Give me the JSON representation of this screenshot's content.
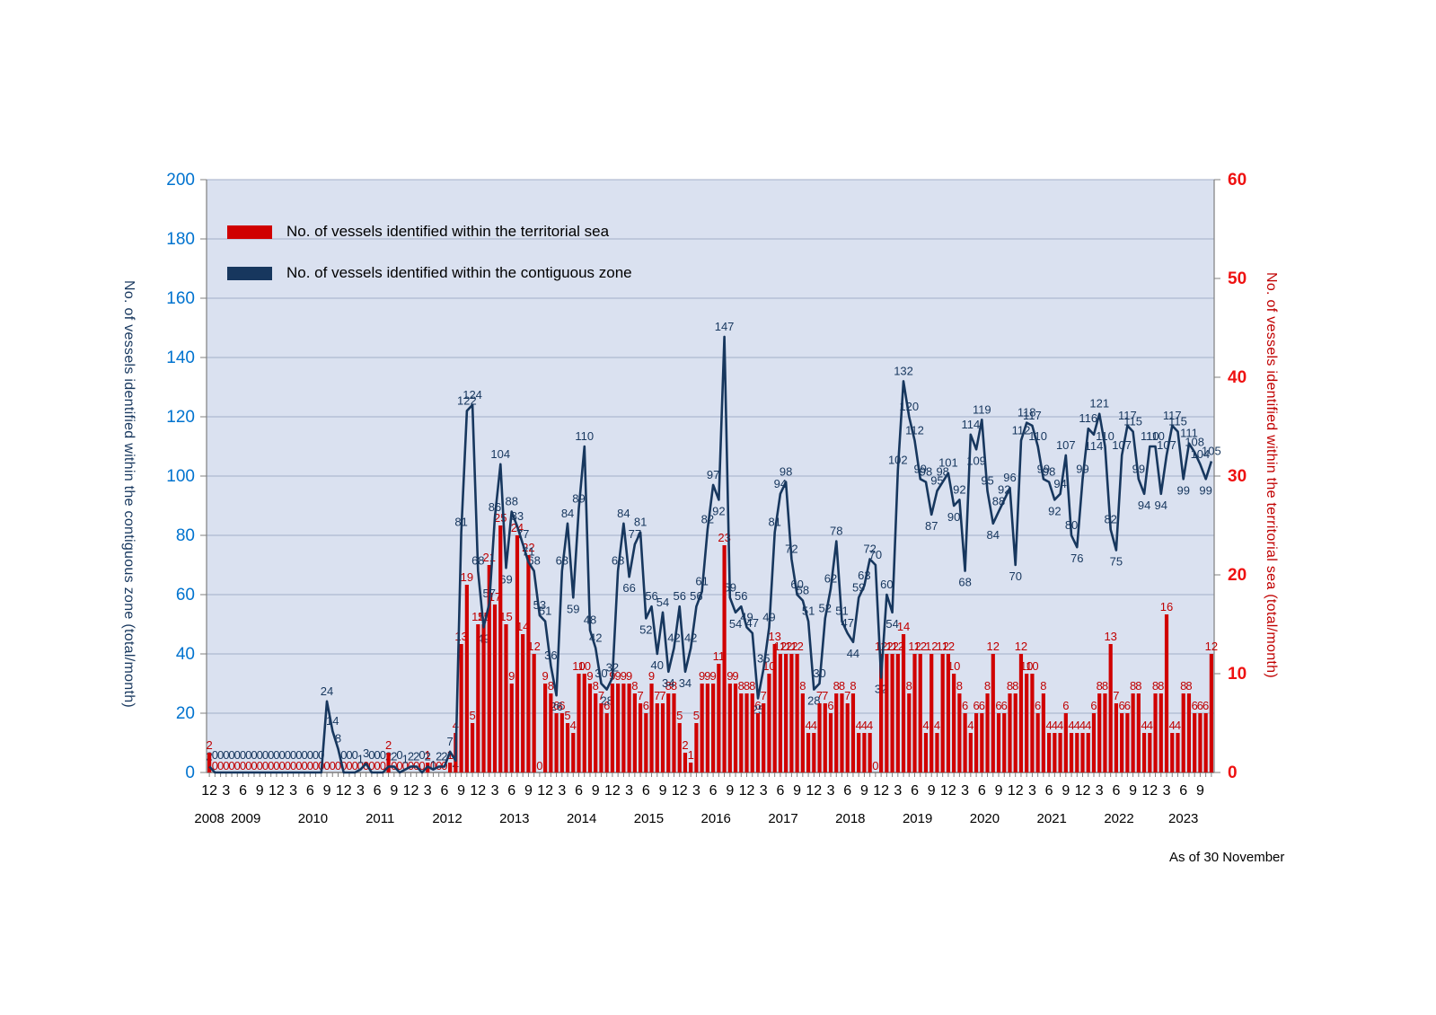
{
  "footnote": "As of 30 November",
  "legend": {
    "territorial_sea": "No. of vessels identified within the territorial sea",
    "contiguous_zone": "No. of vessels identified within the contiguous zone"
  },
  "chart_data": {
    "type": "combo-bar-line",
    "x_start": {
      "year": 2008,
      "month": 12
    },
    "n_months": 180,
    "x_tick_months": [
      3,
      6,
      9,
      12
    ],
    "years_row": [
      "2008",
      "2009",
      "2010",
      "2011",
      "2012",
      "2013",
      "2014",
      "2015",
      "2016",
      "2017",
      "2018",
      "2019",
      "2020",
      "2021",
      "2022",
      "2023"
    ],
    "axes": {
      "left": {
        "label": "No. of vessels identified within the contiguous zone (total/month)",
        "min": 0,
        "max": 200,
        "step": 20
      },
      "right": {
        "label": "No. of vessels identified within the territorial sea  (total/month)",
        "min": 0,
        "max": 60,
        "step": 10
      }
    },
    "grid": true,
    "legend_position": "top-left-inside",
    "colors": {
      "plot_bg": "#dae1f0",
      "grid": "#a3aec8",
      "axis": "#7f7f7f",
      "left_tick": "#0073cf",
      "right_tick": "#ee1111",
      "label_blue": "#17375e",
      "label_red": "#c00000"
    },
    "series": [
      {
        "name": "No. of vessels identified within the territorial sea",
        "type": "bar",
        "axis": "right",
        "color": "#d00000",
        "values": [
          2,
          0,
          0,
          0,
          0,
          0,
          0,
          0,
          0,
          0,
          0,
          0,
          0,
          0,
          0,
          0,
          0,
          0,
          0,
          0,
          0,
          0,
          0,
          0,
          0,
          0,
          0,
          0,
          0,
          0,
          0,
          0,
          2,
          0,
          0,
          0,
          0,
          0,
          0,
          1,
          0,
          0,
          0,
          1,
          4,
          13,
          19,
          5,
          15,
          15,
          21,
          17,
          25,
          15,
          9,
          24,
          14,
          22,
          12,
          0,
          9,
          8,
          6,
          6,
          5,
          4,
          10,
          10,
          9,
          8,
          7,
          6,
          9,
          9,
          9,
          9,
          8,
          7,
          6,
          9,
          7,
          7,
          8,
          8,
          5,
          2,
          1,
          5,
          9,
          9,
          9,
          11,
          23,
          9,
          9,
          8,
          8,
          8,
          6,
          7,
          10,
          13,
          12,
          12,
          12,
          12,
          8,
          4,
          4,
          7,
          7,
          6,
          8,
          8,
          7,
          8,
          4,
          4,
          4,
          0,
          12,
          12,
          12,
          12,
          14,
          8,
          12,
          12,
          4,
          12,
          4,
          12,
          12,
          10,
          8,
          6,
          4,
          6,
          6,
          8,
          12,
          6,
          6,
          8,
          8,
          12,
          10,
          10,
          6,
          8,
          4,
          4,
          4,
          6,
          4,
          4,
          4,
          4,
          6,
          8,
          8,
          13,
          7,
          6,
          6,
          8,
          8,
          4,
          4,
          8,
          8,
          16,
          4,
          4,
          8,
          8,
          6,
          6,
          6,
          12
        ]
      },
      {
        "name": "No. of vessels identified within the contiguous zone",
        "type": "line",
        "axis": "left",
        "color": "#17375e",
        "values": [
          2,
          0,
          0,
          0,
          0,
          0,
          0,
          0,
          0,
          0,
          0,
          0,
          0,
          0,
          0,
          0,
          0,
          0,
          0,
          0,
          0,
          24,
          14,
          8,
          0,
          0,
          0,
          1,
          3,
          0,
          0,
          0,
          2,
          2,
          0,
          1,
          2,
          2,
          0,
          2,
          1,
          2,
          2,
          7,
          4,
          81,
          122,
          124,
          68,
          49,
          57,
          86,
          104,
          69,
          88,
          83,
          77,
          71,
          68,
          53,
          51,
          36,
          26,
          68,
          84,
          59,
          89,
          110,
          48,
          42,
          30,
          28,
          32,
          68,
          84,
          66,
          77,
          81,
          52,
          56,
          40,
          54,
          34,
          42,
          56,
          34,
          42,
          56,
          61,
          82,
          97,
          92,
          147,
          59,
          54,
          56,
          49,
          47,
          25,
          35,
          49,
          81,
          94,
          98,
          72,
          60,
          58,
          51,
          28,
          30,
          52,
          62,
          78,
          51,
          47,
          44,
          59,
          63,
          72,
          70,
          32,
          60,
          54,
          102,
          132,
          120,
          112,
          99,
          98,
          87,
          95,
          98,
          101,
          90,
          92,
          68,
          114,
          109,
          119,
          95,
          84,
          88,
          92,
          96,
          70,
          112,
          118,
          117,
          110,
          99,
          98,
          92,
          94,
          107,
          80,
          76,
          99,
          116,
          114,
          121,
          110,
          82,
          75,
          107,
          117,
          115,
          99,
          94,
          110,
          110,
          94,
          107,
          117,
          115,
          99,
          111,
          108,
          104,
          99,
          105
        ]
      }
    ]
  }
}
